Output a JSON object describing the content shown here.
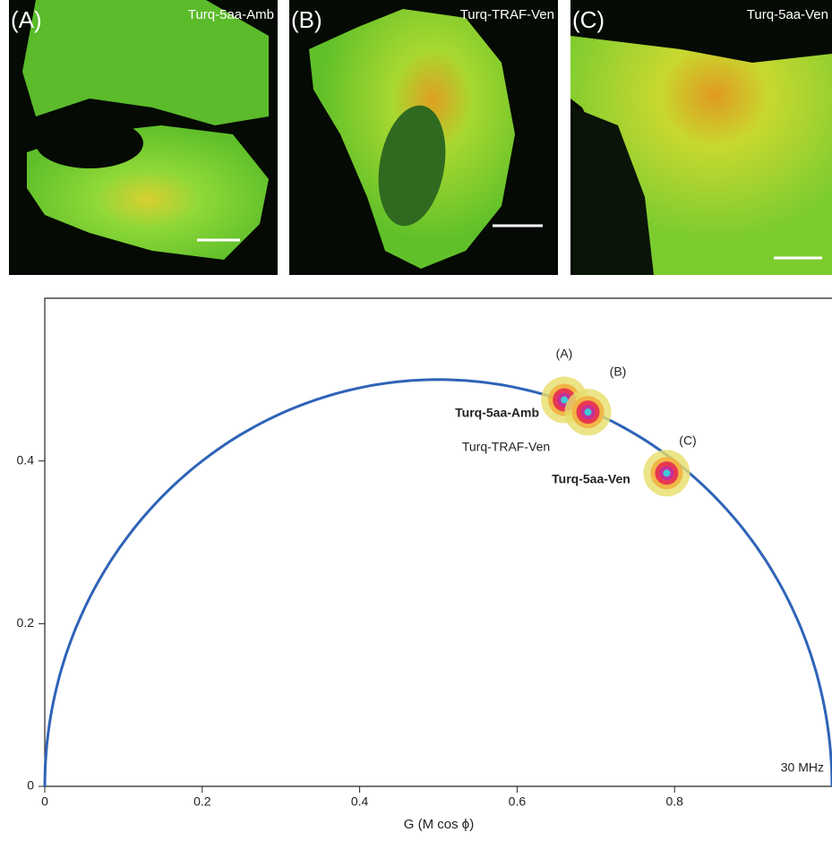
{
  "panels": [
    {
      "letter": "(A)",
      "label": "Turq-5aa-Amb"
    },
    {
      "letter": "(B)",
      "label": "Turq-TRAF-Ven"
    },
    {
      "letter": "(C)",
      "label": "Turq-5aa-Ven"
    }
  ],
  "chart_data": {
    "type": "scatter",
    "x_label": "G (M cos ϕ)",
    "x": [
      0.66,
      0.69,
      0.79
    ],
    "y": [
      0.475,
      0.46,
      0.385
    ],
    "point_letters": [
      "(A)",
      "(B)",
      "(C)"
    ],
    "point_names": [
      "Turq-5aa-Amb",
      "Turq-TRAF-Ven",
      "Turq-5aa-Ven"
    ],
    "annotation": "30 MHz",
    "curve_color": "#2e63b8",
    "xlim": [
      0,
      1
    ],
    "ylim": [
      0,
      0.6
    ],
    "xticks": [
      0,
      0.2,
      0.4,
      0.6,
      0.8
    ],
    "yticks": [
      0,
      0.2,
      0.4
    ]
  }
}
